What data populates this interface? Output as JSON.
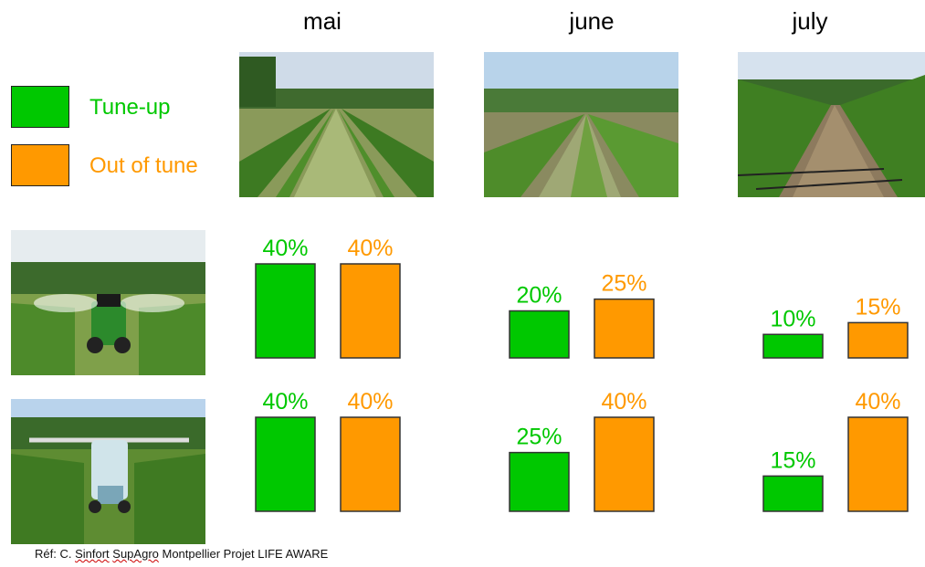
{
  "months": [
    "mai",
    "june",
    "july"
  ],
  "legend": [
    {
      "label": "Tune-up",
      "color": "#00c800"
    },
    {
      "label": "Out of tune",
      "color": "#ff9900"
    }
  ],
  "colors": {
    "tune_up": "#00c800",
    "out_of_tune": "#ff9900",
    "border": "#333333"
  },
  "chart_data": {
    "type": "bar",
    "categories": [
      "mai",
      "june",
      "july"
    ],
    "groups": [
      {
        "sprayer": "tractor sprayer (row 1)",
        "series": [
          {
            "name": "Tune-up",
            "values": [
              40,
              20,
              10
            ]
          },
          {
            "name": "Out of tune",
            "values": [
              40,
              25,
              15
            ]
          }
        ]
      },
      {
        "sprayer": "high-clearance sprayer (row 2)",
        "series": [
          {
            "name": "Tune-up",
            "values": [
              40,
              25,
              15
            ]
          },
          {
            "name": "Out of tune",
            "values": [
              40,
              40,
              40
            ]
          }
        ]
      }
    ],
    "unit": "%",
    "ylim": [
      0,
      40
    ],
    "grid": false
  },
  "footer": {
    "prefix": "Réf: C. ",
    "name": "Sinfort",
    "space": " ",
    "org": "SupAgro",
    "rest": " Montpellier Projet LIFE AWARE"
  }
}
